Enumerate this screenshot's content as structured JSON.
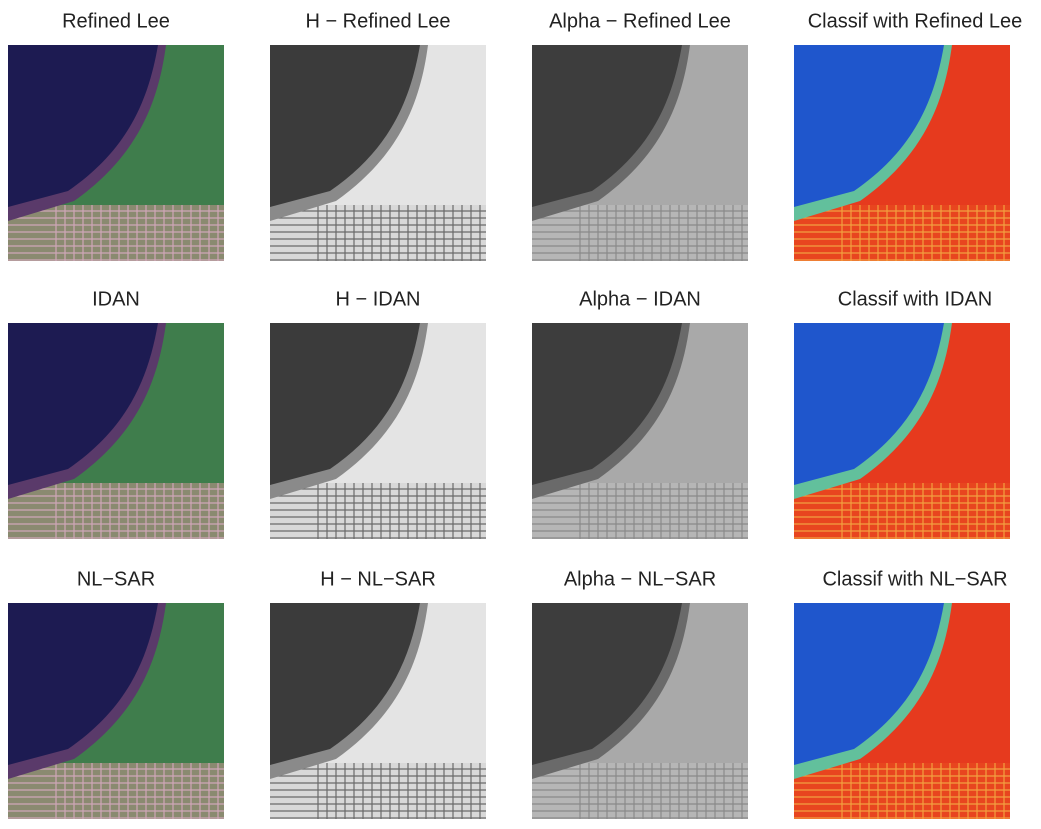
{
  "rows": [
    [
      "Refined Lee",
      "H − Refined Lee",
      "Alpha − Refined Lee",
      "Classif with Refined Lee"
    ],
    [
      "IDAN",
      "H − IDAN",
      "Alpha − IDAN",
      "Classif with IDAN"
    ],
    [
      "NL−SAR",
      "H − NL−SAR",
      "Alpha − NL−SAR",
      "Classif with NL−SAR"
    ]
  ]
}
